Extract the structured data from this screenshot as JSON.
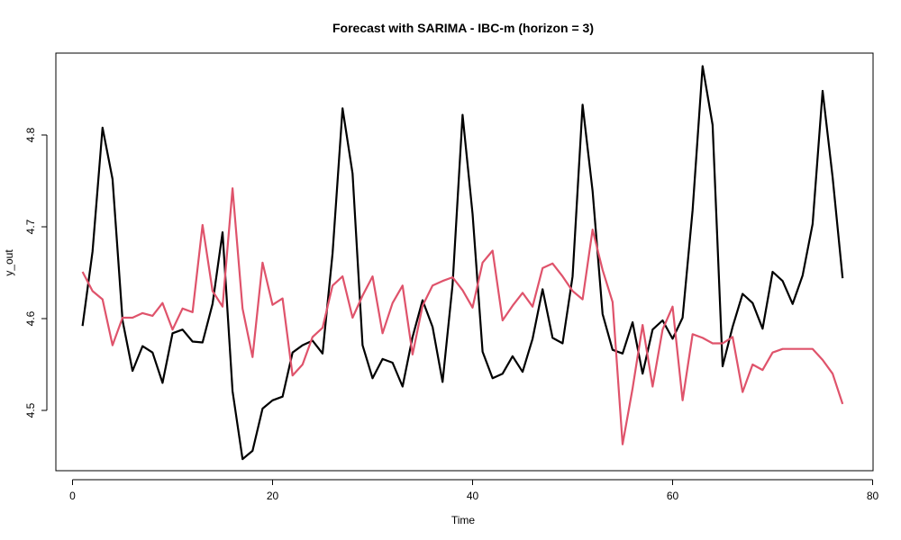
{
  "chart_data": {
    "type": "line",
    "title": "Forecast with SARIMA - IBC-m (horizon = 3)",
    "xlabel": "Time",
    "ylabel": "y_out",
    "xlim": [
      0,
      80
    ],
    "ylim": [
      4.44,
      4.89
    ],
    "x_ticks": [
      0,
      20,
      40,
      60,
      80
    ],
    "y_ticks": [
      4.5,
      4.6,
      4.7,
      4.8
    ],
    "x_tick_labels": [
      "0",
      "20",
      "40",
      "60",
      "80"
    ],
    "y_tick_labels": [
      "4.5",
      "4.6",
      "4.7",
      "4.8"
    ],
    "grid": false,
    "legend": "none",
    "x": [
      1,
      2,
      3,
      4,
      5,
      6,
      7,
      8,
      9,
      10,
      11,
      12,
      13,
      14,
      15,
      16,
      17,
      18,
      19,
      20,
      21,
      22,
      23,
      24,
      25,
      26,
      27,
      28,
      29,
      30,
      31,
      32,
      33,
      34,
      35,
      36,
      37,
      38,
      39,
      40,
      41,
      42,
      43,
      44,
      45,
      46,
      47,
      48,
      49,
      50,
      51,
      52,
      53,
      54,
      55,
      56,
      57,
      58,
      59,
      60,
      61,
      62,
      63,
      64,
      65,
      66,
      67,
      68,
      69,
      70,
      71,
      72,
      73,
      74,
      75,
      76,
      77
    ],
    "series": [
      {
        "color": "#000000",
        "values": [
          4.592,
          4.673,
          4.808,
          4.752,
          4.598,
          4.543,
          4.57,
          4.563,
          4.53,
          4.584,
          4.588,
          4.575,
          4.574,
          4.616,
          4.694,
          4.521,
          4.447,
          4.456,
          4.502,
          4.511,
          4.515,
          4.563,
          4.571,
          4.576,
          4.562,
          4.671,
          4.829,
          4.758,
          4.571,
          4.535,
          4.556,
          4.552,
          4.526,
          4.58,
          4.62,
          4.591,
          4.531,
          4.637,
          4.822,
          4.714,
          4.564,
          4.535,
          4.54,
          4.559,
          4.542,
          4.578,
          4.632,
          4.579,
          4.573,
          4.646,
          4.833,
          4.739,
          4.605,
          4.566,
          4.562,
          4.596,
          4.54,
          4.588,
          4.598,
          4.578,
          4.601,
          4.718,
          4.875,
          4.811,
          4.548,
          4.591,
          4.627,
          4.617,
          4.589,
          4.651,
          4.641,
          4.616,
          4.647,
          4.703,
          4.848,
          4.754,
          4.644
        ]
      },
      {
        "color": "#DF536B",
        "values": [
          4.651,
          4.63,
          4.621,
          4.571,
          4.601,
          4.601,
          4.606,
          4.603,
          4.617,
          4.588,
          4.611,
          4.607,
          4.702,
          4.63,
          4.613,
          4.742,
          4.611,
          4.558,
          4.661,
          4.615,
          4.622,
          4.538,
          4.55,
          4.58,
          4.59,
          4.636,
          4.646,
          4.601,
          4.625,
          4.646,
          4.584,
          4.617,
          4.636,
          4.561,
          4.614,
          4.636,
          4.641,
          4.645,
          4.631,
          4.612,
          4.661,
          4.674,
          4.598,
          4.614,
          4.628,
          4.613,
          4.655,
          4.66,
          4.646,
          4.63,
          4.621,
          4.697,
          4.653,
          4.618,
          4.463,
          4.524,
          4.593,
          4.526,
          4.588,
          4.613,
          4.511,
          4.583,
          4.579,
          4.573,
          4.573,
          4.58,
          4.52,
          4.55,
          4.544,
          4.563,
          4.567,
          4.567,
          4.567,
          4.567,
          4.555,
          4.54,
          4.507
        ]
      }
    ]
  }
}
